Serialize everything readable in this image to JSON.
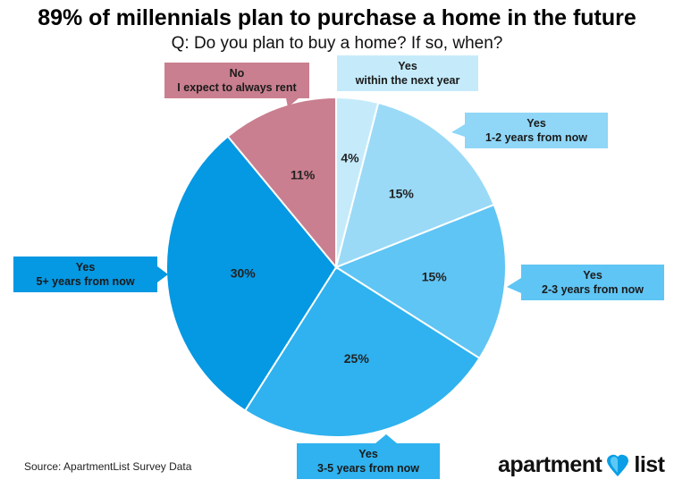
{
  "title": "89% of millennials plan to purchase a home in the future",
  "subtitle": "Q: Do you plan to buy a home? If so, when?",
  "source": "Source: ApartmentList Survey Data",
  "logo": {
    "left": "apartment",
    "right": "list",
    "icon": "map-pin-heart-icon"
  },
  "chart_data": {
    "type": "pie",
    "start": "12 o'clock, clockwise",
    "slices": [
      {
        "label_line1": "Yes",
        "label_line2": "within the next year",
        "value": 4,
        "value_label": "4%",
        "color": "#c5ebfb",
        "callout_color": "#c5ebfb"
      },
      {
        "label_line1": "Yes",
        "label_line2": "1-2 years from now",
        "value": 15,
        "value_label": "15%",
        "color": "#9adaf7",
        "callout_color": "#8fd6f7"
      },
      {
        "label_line1": "Yes",
        "label_line2": "2-3 years from now",
        "value": 15,
        "value_label": "15%",
        "color": "#5fc5f4",
        "callout_color": "#5fc5f4"
      },
      {
        "label_line1": "Yes",
        "label_line2": "3-5 years from now",
        "value": 25,
        "value_label": "25%",
        "color": "#2fb2ef",
        "callout_color": "#2fb2ef"
      },
      {
        "label_line1": "Yes",
        "label_line2": "5+ years from now",
        "value": 30,
        "value_label": "30%",
        "color": "#0598e3",
        "callout_color": "#0598e3"
      },
      {
        "label_line1": "No",
        "label_line2": "I expect to always rent",
        "value": 11,
        "value_label": "11%",
        "color": "#c97f8f",
        "callout_color": "#c97f8f"
      }
    ]
  }
}
